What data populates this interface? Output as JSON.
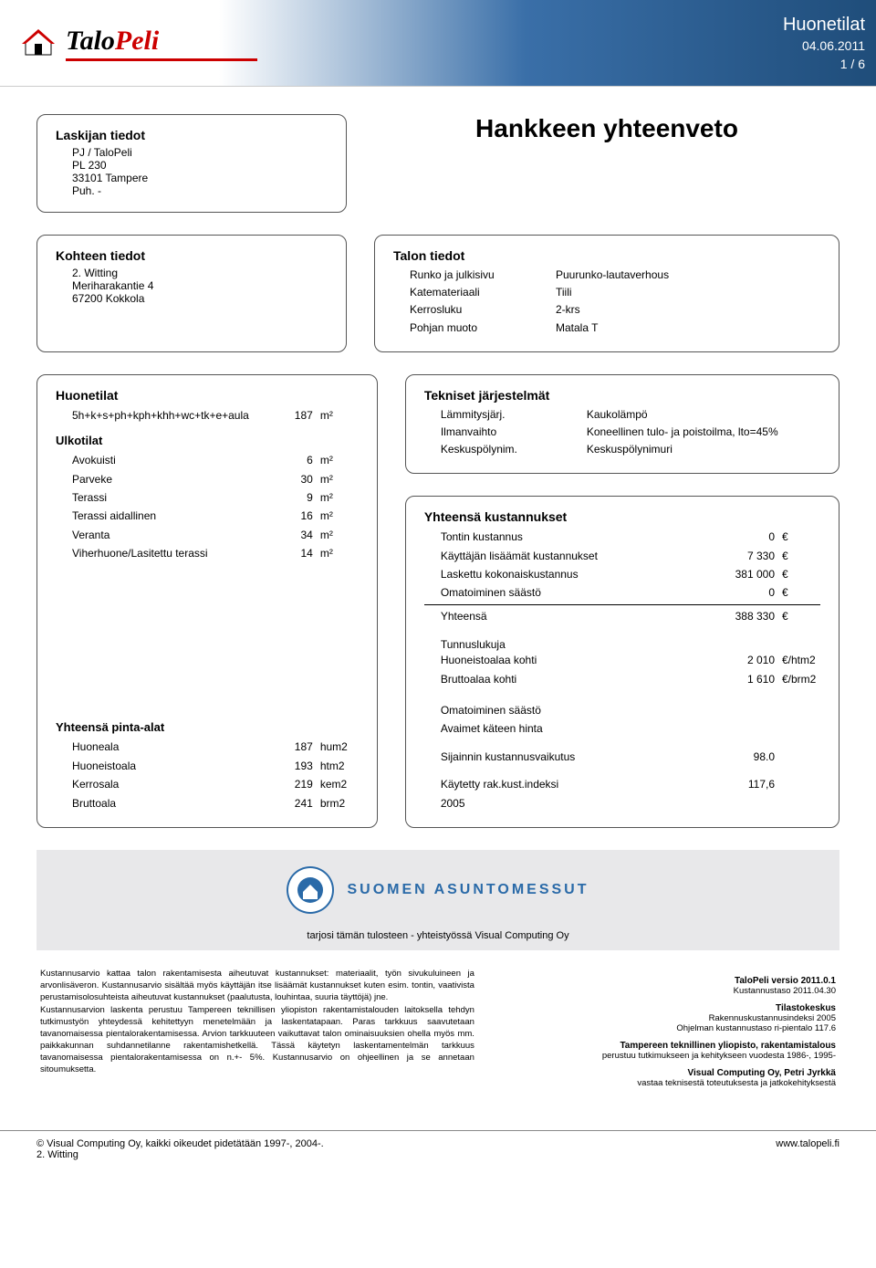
{
  "header": {
    "title": "Huonetilat",
    "date": "04.06.2011",
    "page": "1 / 6",
    "logo_text_a": "Talo",
    "logo_text_b": "Peli",
    "accent_color": "#c00",
    "band_gradient_from": "#3a6fa8",
    "band_gradient_to": "#1f4d7a"
  },
  "box_laskija": {
    "heading": "Laskijan tiedot",
    "lines": [
      "PJ / TaloPeli",
      "PL 230",
      "33101 Tampere",
      "Puh. -"
    ]
  },
  "main_title": "Hankkeen yhteenveto",
  "box_kohteen": {
    "heading": "Kohteen tiedot",
    "lines": [
      "2. Witting",
      "Meriharakantie 4",
      "67200 Kokkola"
    ]
  },
  "box_talon": {
    "heading": "Talon tiedot",
    "pairs": [
      {
        "label": "Runko ja julkisivu",
        "value": "Puurunko-lautaverhous"
      },
      {
        "label": "Katemateriaali",
        "value": "Tiili"
      },
      {
        "label": "Kerrosluku",
        "value": "2-krs"
      },
      {
        "label": "Pohjan muoto",
        "value": "Matala T"
      }
    ]
  },
  "box_huonetilat": {
    "sec1_head": "Huonetilat",
    "sec1_rows": [
      {
        "l": "5h+k+s+ph+kph+khh+wc+tk+e+aula",
        "v": "187",
        "u": "m²"
      }
    ],
    "sec2_head": "Ulkotilat",
    "sec2_rows": [
      {
        "l": "Avokuisti",
        "v": "6",
        "u": "m²"
      },
      {
        "l": "Parveke",
        "v": "30",
        "u": "m²"
      },
      {
        "l": "Terassi",
        "v": "9",
        "u": "m²"
      },
      {
        "l": "Terassi aidallinen",
        "v": "16",
        "u": "m²"
      },
      {
        "l": "Veranta",
        "v": "34",
        "u": "m²"
      },
      {
        "l": "Viherhuone/Lasitettu terassi",
        "v": "14",
        "u": "m²"
      }
    ],
    "sec3_head": "Yhteensä pinta-alat",
    "sec3_rows": [
      {
        "l": "Huoneala",
        "v": "187",
        "u": "hum2"
      },
      {
        "l": "Huoneistoala",
        "v": "193",
        "u": "htm2"
      },
      {
        "l": "Kerrosala",
        "v": "219",
        "u": "kem2"
      },
      {
        "l": "Bruttoala",
        "v": "241",
        "u": "brm2"
      }
    ]
  },
  "box_tekniset": {
    "sec1_head": "Tekniset järjestelmät",
    "sec1_pairs": [
      {
        "label": "Lämmitysjärj.",
        "value": "Kaukolämpö"
      },
      {
        "label": "Ilmanvaihto",
        "value": "Koneellinen tulo- ja poistoilma, lto=45%"
      },
      {
        "label": "Keskuspölynim.",
        "value": "Keskuspölynimuri"
      }
    ],
    "sec2_head": "Yhteensä kustannukset",
    "sec2_rows": [
      {
        "l": "Tontin kustannus",
        "v": "0",
        "u": "€"
      },
      {
        "l": "Käyttäjän lisäämät kustannukset",
        "v": "7 330",
        "u": "€"
      },
      {
        "l": "Laskettu kokonaiskustannus",
        "v": "381 000",
        "u": "€"
      },
      {
        "l": "Omatoiminen säästö",
        "v": "0",
        "u": "€"
      }
    ],
    "sec2_total": {
      "l": "Yhteensä",
      "v": "388 330",
      "u": "€"
    },
    "sec3_head": "Tunnuslukuja",
    "sec3_rows": [
      {
        "l": "Huoneistoalaa kohti",
        "v": "2 010",
        "u": "€/htm2"
      },
      {
        "l": "Bruttoalaa kohti",
        "v": "1 610",
        "u": "€/brm2"
      }
    ],
    "sec4_rows": [
      {
        "l": "Omatoiminen säästö",
        "v": "",
        "u": ""
      },
      {
        "l": "Avaimet käteen hinta",
        "v": "",
        "u": ""
      }
    ],
    "sec5_rows": [
      {
        "l": "Sijainnin kustannusvaikutus",
        "v": "98.0",
        "u": ""
      }
    ],
    "sec6_rows": [
      {
        "l": "Käytetty rak.kust.indeksi",
        "v": "117,6",
        "u": ""
      },
      {
        "l": "2005",
        "v": "",
        "u": ""
      }
    ]
  },
  "sponsor": {
    "name": "SUOMEN ASUNTOMESSUT",
    "sub": "tarjosi tämän tulosteen - yhteistyössä Visual Computing Oy"
  },
  "fineprint": {
    "left": "Kustannusarvio kattaa talon rakentamisesta aiheutuvat kustannukset: materiaalit, työn sivukuluineen ja arvonlisäveron. Kustannusarvio sisältää myös käyttäjän itse lisäämät kustannukset kuten esim. tontin, vaativista perustamisolosuhteista aiheutuvat kustannukset (paalutusta, louhintaa, suuria täyttöjä) jne.\nKustannusarvion laskenta perustuu Tampereen teknillisen yliopiston rakentamistalouden laitoksella tehdyn tutkimustyön yhteydessä kehitettyyn menetelmään ja laskentatapaan. Paras tarkkuus saavutetaan tavanomaisessa pientalorakentamisessa. Arvion tarkkuuteen vaikuttavat talon ominaisuuksien ohella myös mm. paikkakunnan suhdannetilanne rakentamishetkellä. Tässä käytetyn laskentamentelmän tarkkuus tavanomaisessa pientalorakentamisessa on n.+- 5%. Kustannusarvio on ohjeellinen ja se annetaan sitoumuksetta.",
    "right": [
      {
        "head": "TaloPeli versio 2011.0.1",
        "body": "Kustannustaso 2011.04.30"
      },
      {
        "head": "Tilastokeskus",
        "body": "Rakennuskustannusindeksi 2005\nOhjelman kustannustaso ri-pientalo 117.6"
      },
      {
        "head": "Tampereen teknillinen yliopisto, rakentamistalous",
        "body": "perustuu tutkimukseen ja kehitykseen vuodesta 1986-, 1995-"
      },
      {
        "head": "Visual Computing Oy, Petri Jyrkkä",
        "body": "vastaa teknisestä toteutuksesta ja jatkokehityksestä"
      }
    ]
  },
  "footer": {
    "left1": "© Visual Computing Oy, kaikki oikeudet pidetätään 1997-, 2004-.",
    "left2": "2. Witting",
    "right": "www.talopeli.fi"
  }
}
